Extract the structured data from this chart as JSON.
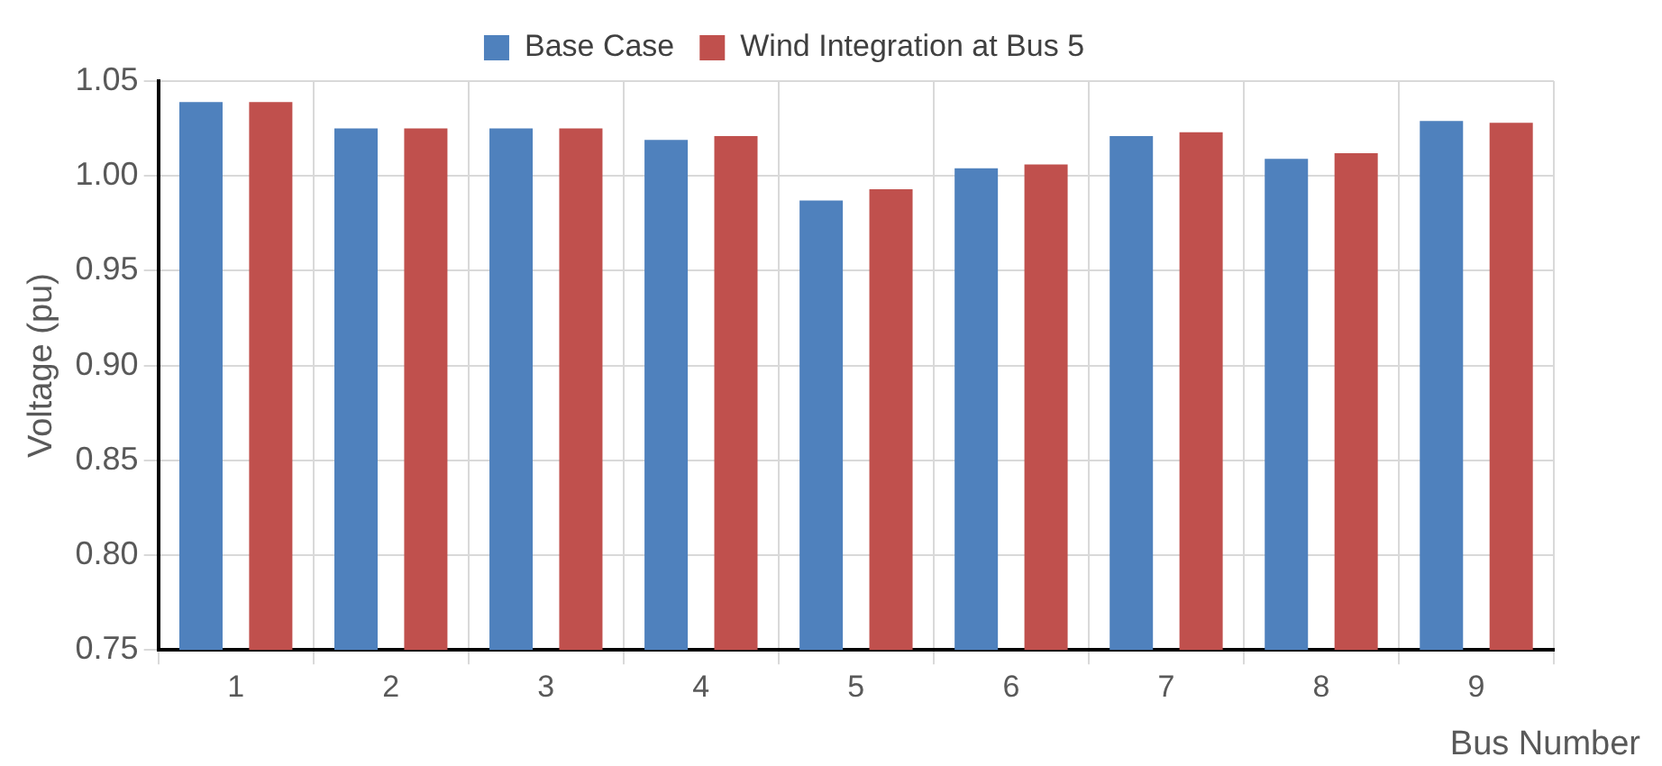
{
  "chart_data": {
    "type": "bar",
    "xlabel": "Bus Number",
    "ylabel": "Voltage (pu)",
    "categories": [
      "1",
      "2",
      "3",
      "4",
      "5",
      "6",
      "7",
      "8",
      "9"
    ],
    "series": [
      {
        "name": "Base Case",
        "color": "#4f81bd",
        "values": [
          1.039,
          1.025,
          1.025,
          1.019,
          0.987,
          1.004,
          1.021,
          1.009,
          1.029
        ]
      },
      {
        "name": "Wind Integration at Bus 5",
        "color": "#c0504d",
        "values": [
          1.039,
          1.025,
          1.025,
          1.021,
          0.993,
          1.006,
          1.023,
          1.012,
          1.028
        ]
      }
    ],
    "ylim": [
      0.75,
      1.05
    ],
    "yticks": [
      0.75,
      {
        "value": 0.8,
        "label": "0.80"
      },
      0.85,
      {
        "value": 0.9,
        "label": "0.90"
      },
      0.95,
      {
        "value": 1,
        "label": "1.00"
      },
      1.05
    ],
    "grid": true,
    "legend": "top"
  }
}
